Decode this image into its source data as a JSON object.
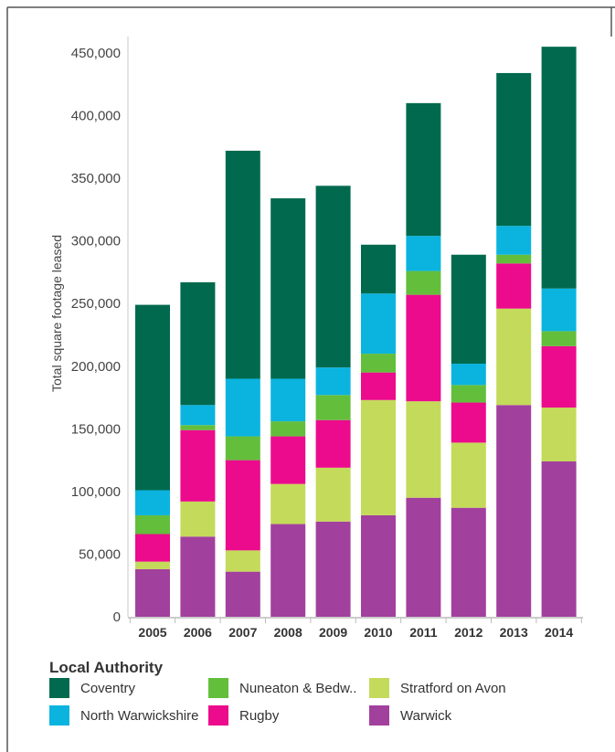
{
  "chart_data": {
    "type": "bar",
    "stacked": true,
    "title": "",
    "xlabel": "",
    "ylabel": "Total square footage leased",
    "ylim": [
      0,
      460000
    ],
    "yticks": [
      0,
      50000,
      100000,
      150000,
      200000,
      250000,
      300000,
      350000,
      400000,
      450000
    ],
    "ytick_labels": [
      "0",
      "50,000",
      "100,000",
      "150,000",
      "200,000",
      "250,000",
      "300,000",
      "350,000",
      "400,000",
      "450,000"
    ],
    "categories": [
      "2005",
      "2006",
      "2007",
      "2008",
      "2009",
      "2010",
      "2011",
      "2012",
      "2013",
      "2014"
    ],
    "series": [
      {
        "name": "Warwick",
        "color": "#a2409e",
        "values": [
          38000,
          64000,
          36000,
          74000,
          76000,
          81000,
          95000,
          87000,
          169000,
          124000
        ]
      },
      {
        "name": "Stratford on Avon",
        "color": "#c4da5a",
        "values": [
          6000,
          28000,
          17000,
          32000,
          43000,
          92000,
          77000,
          52000,
          77000,
          43000
        ]
      },
      {
        "name": "Rugby",
        "color": "#ec0b8c",
        "values": [
          22000,
          57000,
          72000,
          38000,
          38000,
          22000,
          85000,
          32000,
          36000,
          49000
        ]
      },
      {
        "name": "Nuneaton & Bedw..",
        "color": "#63be3c",
        "values": [
          15000,
          4000,
          19000,
          12000,
          20000,
          15000,
          19000,
          14000,
          7000,
          12000
        ]
      },
      {
        "name": "North Warwickshire",
        "color": "#0ab4df",
        "values": [
          20000,
          16000,
          46000,
          34000,
          22000,
          48000,
          28000,
          17000,
          23000,
          34000
        ]
      },
      {
        "name": "Coventry",
        "color": "#016a4e",
        "values": [
          148000,
          98000,
          182000,
          144000,
          145000,
          39000,
          106000,
          87000,
          122000,
          193000
        ]
      }
    ],
    "grid": false,
    "legend": {
      "title": "Local Authority",
      "position": "bottom",
      "items": [
        {
          "label": "Coventry",
          "color": "#016a4e"
        },
        {
          "label": "Nuneaton & Bedw..",
          "color": "#63be3c"
        },
        {
          "label": "Stratford on Avon",
          "color": "#c4da5a"
        },
        {
          "label": "North Warwickshire",
          "color": "#0ab4df"
        },
        {
          "label": "Rugby",
          "color": "#ec0b8c"
        },
        {
          "label": "Warwick",
          "color": "#a2409e"
        }
      ]
    }
  }
}
